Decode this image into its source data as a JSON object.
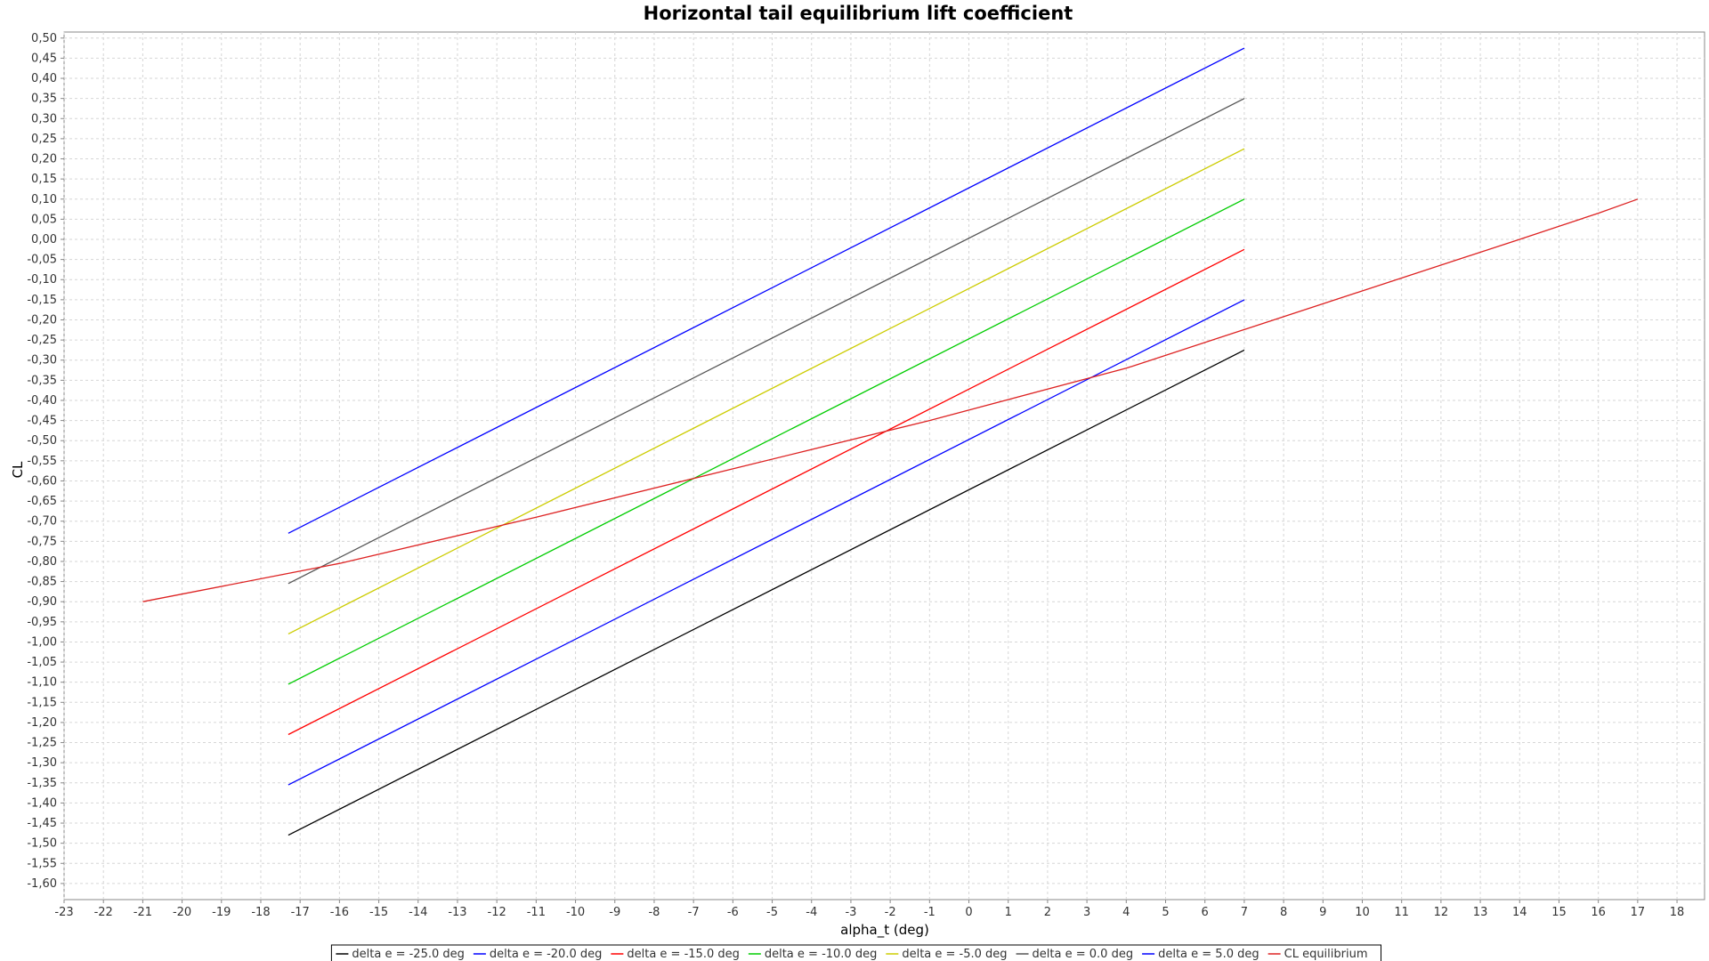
{
  "chart_data": {
    "type": "line",
    "title": "Horizontal tail equilibrium lift coefficient",
    "xlabel": "alpha_t (deg)",
    "ylabel": "CL",
    "xlim": [
      -23,
      18.7
    ],
    "ylim": [
      -1.64,
      0.515
    ],
    "x_ticks": [
      -23,
      -22,
      -21,
      -20,
      -19,
      -18,
      -17,
      -16,
      -15,
      -14,
      -13,
      -12,
      -11,
      -10,
      -9,
      -8,
      -7,
      -6,
      -5,
      -4,
      -3,
      -2,
      -1,
      0,
      1,
      2,
      3,
      4,
      5,
      6,
      7,
      8,
      9,
      10,
      11,
      12,
      13,
      14,
      15,
      16,
      17,
      18
    ],
    "y_ticks": [
      0.5,
      0.45,
      0.4,
      0.35,
      0.3,
      0.25,
      0.2,
      0.15,
      0.1,
      0.05,
      0.0,
      -0.05,
      -0.1,
      -0.15,
      -0.2,
      -0.25,
      -0.3,
      -0.35,
      -0.4,
      -0.45,
      -0.5,
      -0.55,
      -0.6,
      -0.65,
      -0.7,
      -0.75,
      -0.8,
      -0.85,
      -0.9,
      -0.95,
      -1.0,
      -1.05,
      -1.1,
      -1.15,
      -1.2,
      -1.25,
      -1.3,
      -1.35,
      -1.4,
      -1.45,
      -1.5,
      -1.55,
      -1.6
    ],
    "y_tick_labels": [
      "0,50",
      "0,45",
      "0,40",
      "0,35",
      "0,30",
      "0,25",
      "0,20",
      "0,15",
      "0,10",
      "0,05",
      "0,00",
      "-0,05",
      "-0,10",
      "-0,15",
      "-0,20",
      "-0,25",
      "-0,30",
      "-0,35",
      "-0,40",
      "-0,45",
      "-0,50",
      "-0,55",
      "-0,60",
      "-0,65",
      "-0,70",
      "-0,75",
      "-0,80",
      "-0,85",
      "-0,90",
      "-0,95",
      "-1,00",
      "-1,05",
      "-1,10",
      "-1,15",
      "-1,20",
      "-1,25",
      "-1,30",
      "-1,35",
      "-1,40",
      "-1,45",
      "-1,50",
      "-1,55",
      "-1,60"
    ],
    "grid": true,
    "legend_position": "bottom",
    "series": [
      {
        "name": "delta e = -25.0 deg",
        "color": "#000000",
        "x": [
          -17.3,
          7
        ],
        "y": [
          -1.48,
          -0.275
        ]
      },
      {
        "name": "delta e = -20.0 deg",
        "color": "#0000ff",
        "x": [
          -17.3,
          7
        ],
        "y": [
          -1.355,
          -0.15
        ]
      },
      {
        "name": "delta e = -15.0 deg",
        "color": "#ff0000",
        "x": [
          -17.3,
          7
        ],
        "y": [
          -1.23,
          -0.025
        ]
      },
      {
        "name": "delta e = -10.0 deg",
        "color": "#00cc00",
        "x": [
          -17.3,
          7
        ],
        "y": [
          -1.105,
          0.1
        ]
      },
      {
        "name": "delta e = -5.0 deg",
        "color": "#cccc00",
        "x": [
          -17.3,
          7
        ],
        "y": [
          -0.98,
          0.225
        ]
      },
      {
        "name": "delta e = 0.0 deg",
        "color": "#555555",
        "x": [
          -17.3,
          7
        ],
        "y": [
          -0.855,
          0.35
        ]
      },
      {
        "name": "delta e = 5.0 deg",
        "color": "#0000ff",
        "x": [
          -17.3,
          7
        ],
        "y": [
          -0.73,
          0.475
        ]
      },
      {
        "name": "CL equilibrium",
        "color": "#dd2222",
        "x": [
          -21,
          -16,
          -11,
          -6,
          -1,
          4,
          9,
          14,
          16,
          17
        ],
        "y": [
          -0.9,
          -0.805,
          -0.69,
          -0.57,
          -0.45,
          -0.32,
          -0.16,
          0.0,
          0.065,
          0.1
        ]
      }
    ]
  }
}
